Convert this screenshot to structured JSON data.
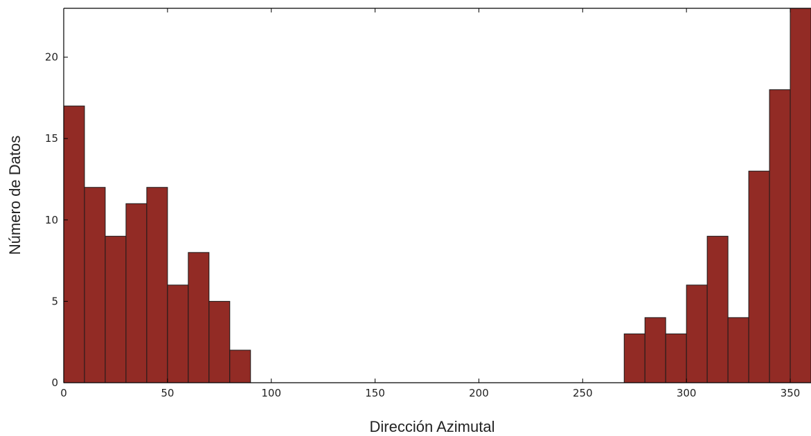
{
  "chart_data": {
    "type": "bar",
    "title": "",
    "xlabel": "Dirección Azimutal",
    "ylabel": "Número de Datos",
    "xlim": [
      0,
      360
    ],
    "ylim": [
      0,
      23
    ],
    "bin_width": 10,
    "bins": [
      {
        "x0": 0,
        "value": 17
      },
      {
        "x0": 10,
        "value": 12
      },
      {
        "x0": 20,
        "value": 9
      },
      {
        "x0": 30,
        "value": 11
      },
      {
        "x0": 40,
        "value": 12
      },
      {
        "x0": 50,
        "value": 6
      },
      {
        "x0": 60,
        "value": 8
      },
      {
        "x0": 70,
        "value": 5
      },
      {
        "x0": 80,
        "value": 2
      },
      {
        "x0": 270,
        "value": 3
      },
      {
        "x0": 280,
        "value": 4
      },
      {
        "x0": 290,
        "value": 3
      },
      {
        "x0": 300,
        "value": 6
      },
      {
        "x0": 310,
        "value": 9
      },
      {
        "x0": 320,
        "value": 4
      },
      {
        "x0": 330,
        "value": 13
      },
      {
        "x0": 340,
        "value": 18
      },
      {
        "x0": 350,
        "value": 23
      }
    ],
    "x_ticks": [
      0,
      50,
      100,
      150,
      200,
      250,
      300,
      350
    ],
    "y_ticks": [
      0,
      5,
      10,
      15,
      20
    ],
    "bar_color": "#922b25",
    "bar_edge_color": "#1a1a1a",
    "grid": false,
    "legend": "none"
  }
}
